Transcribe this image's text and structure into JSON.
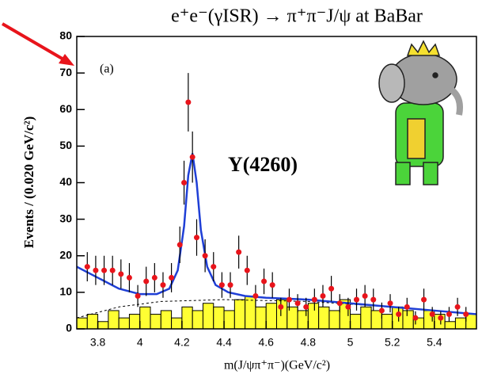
{
  "chart_data": {
    "type": "scatter",
    "title": "e⁺e⁻(γISR) → π⁺π⁻J/ψ at BaBar",
    "xlabel": "m(J/ψπ⁺π⁻)(GeV/c²)",
    "ylabel": "Events / (0.020 GeV/c²)",
    "annotations": [
      "(a)",
      "Y(4260)"
    ],
    "xlim": [
      3.7,
      5.6
    ],
    "ylim": [
      0,
      80
    ],
    "xticks": [
      3.8,
      4,
      4.2,
      4.4,
      4.6,
      4.8,
      5,
      5.2,
      5.4
    ],
    "yticks": [
      0,
      10,
      20,
      30,
      40,
      50,
      60,
      70,
      80
    ],
    "points": {
      "color": "#e8141b",
      "x": [
        3.75,
        3.79,
        3.83,
        3.87,
        3.91,
        3.95,
        3.99,
        4.03,
        4.07,
        4.11,
        4.15,
        4.19,
        4.21,
        4.23,
        4.25,
        4.27,
        4.31,
        4.35,
        4.39,
        4.43,
        4.47,
        4.51,
        4.55,
        4.59,
        4.63,
        4.67,
        4.71,
        4.75,
        4.79,
        4.83,
        4.87,
        4.91,
        4.95,
        4.99,
        5.03,
        5.07,
        5.11,
        5.15,
        5.19,
        5.23,
        5.27,
        5.31,
        5.35,
        5.39,
        5.43,
        5.47,
        5.51,
        5.55
      ],
      "values": [
        17,
        16,
        16,
        16,
        15,
        14,
        9,
        13,
        14,
        12,
        14,
        23,
        40,
        62,
        47,
        25,
        20,
        17,
        12,
        12,
        21,
        16,
        9,
        13,
        12,
        6,
        8,
        7,
        6,
        8,
        9,
        11,
        7,
        6,
        8,
        9,
        8,
        5,
        7,
        4,
        6,
        3,
        8,
        4,
        3,
        4,
        6,
        4
      ],
      "errors": [
        4,
        4,
        4,
        4,
        4,
        4,
        3,
        4,
        4,
        3.5,
        4,
        5,
        6,
        8,
        7,
        5,
        4.5,
        4,
        3.5,
        3.5,
        4.5,
        4,
        3,
        3.5,
        3.5,
        2.5,
        3,
        2.5,
        2.5,
        3,
        3,
        3.5,
        2.5,
        2.5,
        3,
        3,
        3,
        2.2,
        2.5,
        2,
        2.5,
        1.8,
        3,
        2,
        1.8,
        2,
        2.5,
        2
      ]
    },
    "fit": {
      "color": "#1f3fd6",
      "x": [
        3.7,
        3.8,
        3.9,
        4.0,
        4.08,
        4.14,
        4.18,
        4.21,
        4.23,
        4.25,
        4.27,
        4.29,
        4.32,
        4.36,
        4.42,
        4.5,
        4.6,
        4.8,
        5.0,
        5.2,
        5.4,
        5.6
      ],
      "values": [
        17,
        14,
        11,
        9.5,
        9.5,
        11,
        16,
        28,
        42,
        48,
        40,
        27,
        17,
        12,
        10,
        9,
        8.5,
        8,
        7,
        6,
        5,
        4
      ]
    },
    "background": {
      "x": [
        3.7,
        3.9,
        4.1,
        4.4,
        4.8,
        5.2,
        5.6
      ],
      "values": [
        3,
        6,
        7.5,
        8,
        7.5,
        6,
        4
      ]
    },
    "histogram": {
      "color": "#ffff33",
      "bins": [
        3.7,
        3.75,
        3.8,
        3.85,
        3.9,
        3.95,
        4.0,
        4.05,
        4.1,
        4.15,
        4.2,
        4.25,
        4.3,
        4.35,
        4.4,
        4.45,
        4.5,
        4.55,
        4.6,
        4.65,
        4.7,
        4.75,
        4.8,
        4.85,
        4.9,
        4.95,
        5.0,
        5.05,
        5.1,
        5.15,
        5.2,
        5.25,
        5.3,
        5.35,
        5.4,
        5.45,
        5.5,
        5.55,
        5.6
      ],
      "counts": [
        3,
        4,
        2,
        5,
        3,
        4,
        6,
        4,
        5,
        3,
        6,
        5,
        7,
        6,
        5,
        8,
        9,
        6,
        7,
        8,
        6,
        5,
        7,
        6,
        5,
        8,
        4,
        6,
        5,
        4,
        6,
        5,
        3,
        5,
        4,
        2,
        3,
        4
      ]
    }
  }
}
